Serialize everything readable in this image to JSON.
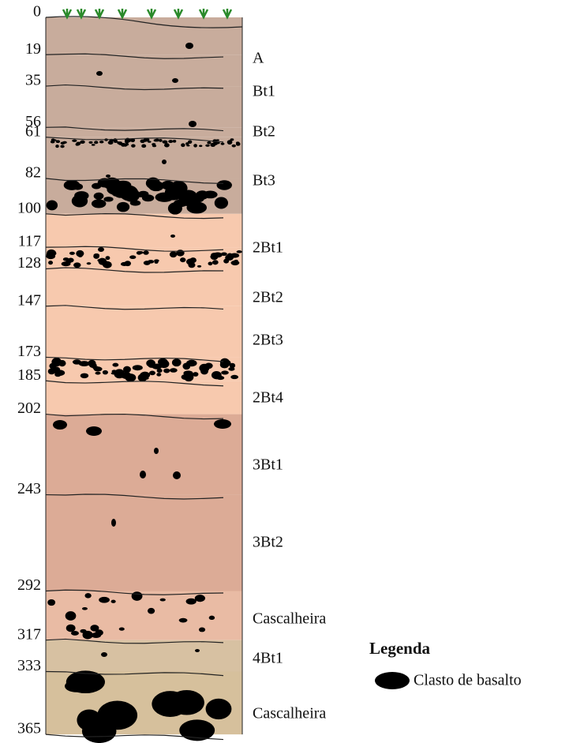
{
  "depths": [
    0,
    19,
    35,
    56,
    61,
    82,
    100,
    117,
    128,
    147,
    173,
    185,
    202,
    243,
    292,
    317,
    333,
    365
  ],
  "horizons": [
    "A",
    "Bt1",
    "Bt2",
    "Bt3",
    "2Bt1",
    "2Bt2",
    "2Bt3",
    "2Bt4",
    "3Bt1",
    "3Bt2",
    "Cascalheira",
    "4Bt1",
    "Cascalheira"
  ],
  "legend": {
    "title": "Legenda",
    "item": "Clasto de basalto"
  }
}
